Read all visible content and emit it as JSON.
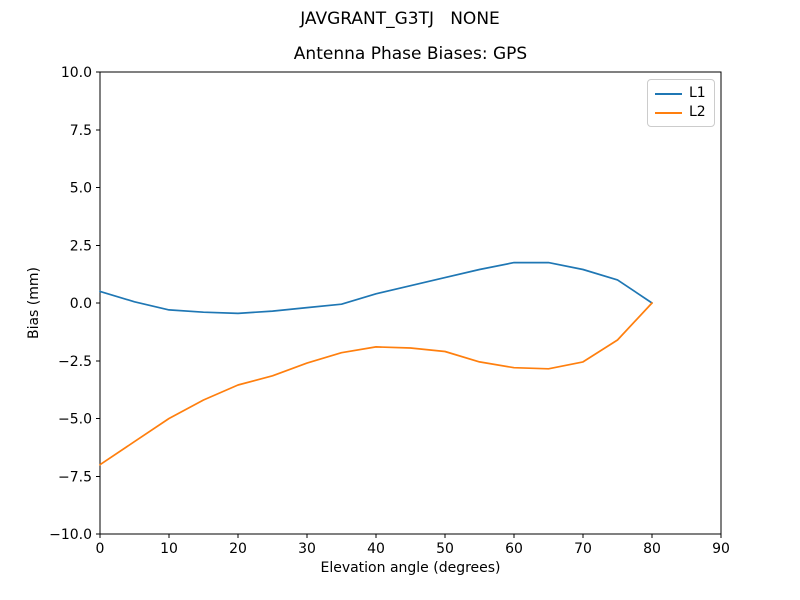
{
  "chart_data": {
    "type": "line",
    "suptitle": "JAVGRANT_G3TJ   NONE",
    "title": "Antenna Phase Biases: GPS",
    "xlabel": "Elevation angle (degrees)",
    "ylabel": "Bias (mm)",
    "xlim": [
      0,
      90
    ],
    "ylim": [
      -10,
      10
    ],
    "grid": false,
    "legend_position": "upper right",
    "x": [
      0,
      5,
      10,
      15,
      20,
      25,
      30,
      35,
      40,
      45,
      50,
      55,
      60,
      65,
      70,
      75,
      80
    ],
    "series": [
      {
        "name": "L1",
        "color": "#1f77b4",
        "values": [
          0.5,
          0.05,
          -0.3,
          -0.4,
          -0.45,
          -0.35,
          -0.2,
          -0.05,
          0.4,
          0.75,
          1.1,
          1.45,
          1.75,
          1.75,
          1.45,
          1.0,
          0.0
        ]
      },
      {
        "name": "L2",
        "color": "#ff7f0e",
        "values": [
          -7.0,
          -6.0,
          -5.0,
          -4.2,
          -3.55,
          -3.15,
          -2.6,
          -2.15,
          -1.9,
          -1.95,
          -2.1,
          -2.55,
          -2.8,
          -2.85,
          -2.55,
          -1.6,
          0.0
        ]
      }
    ],
    "xticks": [
      {
        "value": 0,
        "label": "0"
      },
      {
        "value": 10,
        "label": "10"
      },
      {
        "value": 20,
        "label": "20"
      },
      {
        "value": 30,
        "label": "30"
      },
      {
        "value": 40,
        "label": "40"
      },
      {
        "value": 50,
        "label": "50"
      },
      {
        "value": 60,
        "label": "60"
      },
      {
        "value": 70,
        "label": "70"
      },
      {
        "value": 80,
        "label": "80"
      },
      {
        "value": 90,
        "label": "90"
      }
    ],
    "yticks": [
      {
        "value": -10,
        "label": "−10.0"
      },
      {
        "value": -7.5,
        "label": "−7.5"
      },
      {
        "value": -5,
        "label": "−5.0"
      },
      {
        "value": -2.5,
        "label": "−2.5"
      },
      {
        "value": 0,
        "label": "0.0"
      },
      {
        "value": 2.5,
        "label": "2.5"
      },
      {
        "value": 5,
        "label": "5.0"
      },
      {
        "value": 7.5,
        "label": "7.5"
      },
      {
        "value": 10,
        "label": "10.0"
      }
    ]
  }
}
